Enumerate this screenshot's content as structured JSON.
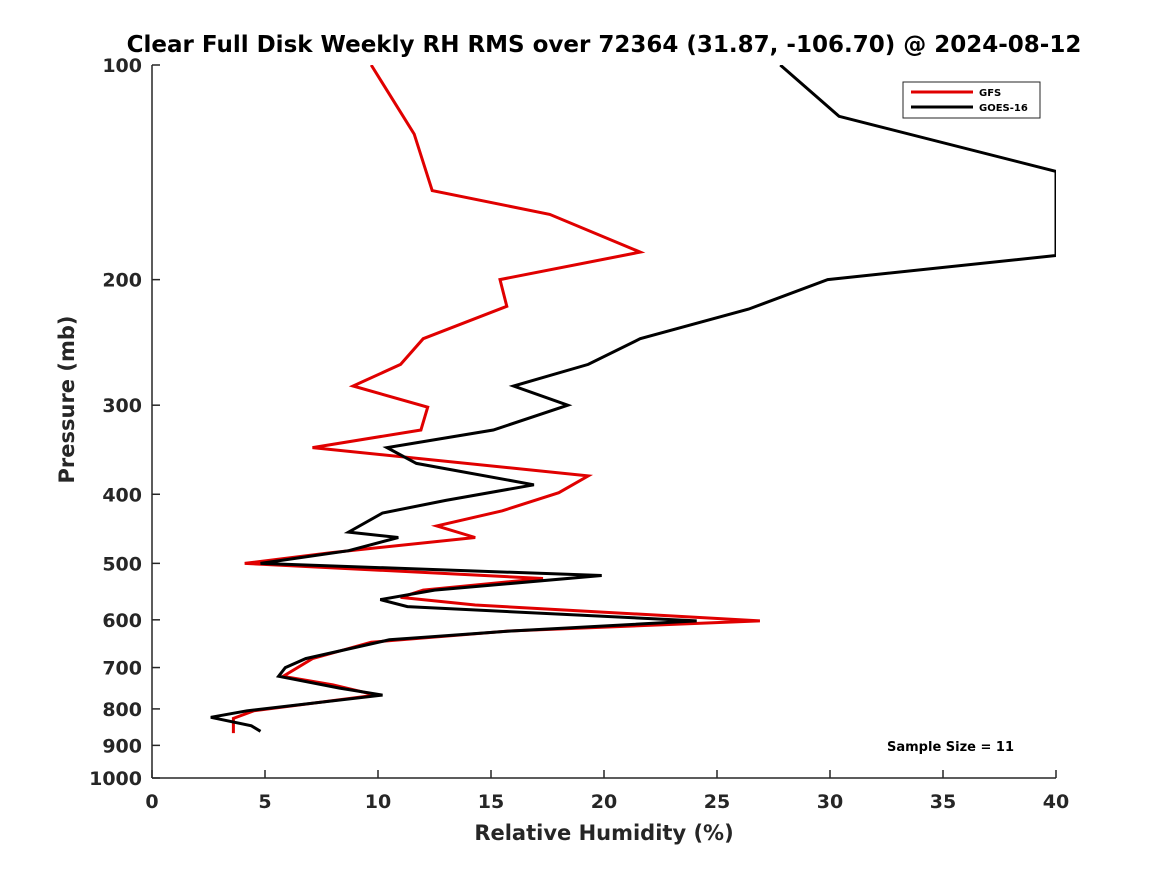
{
  "chart_data": {
    "type": "line",
    "title": "Clear Full Disk Weekly RH RMS over 72364 (31.87, -106.70) @ 2024-08-12",
    "xlabel": "Relative Humidity (%)",
    "ylabel": "Pressure (mb)",
    "xlim": [
      0,
      40
    ],
    "ylim": [
      100,
      1000
    ],
    "yscale": "log",
    "yreversed": true,
    "xticks": [
      0,
      5,
      10,
      15,
      20,
      25,
      30,
      35,
      40
    ],
    "xtick_labels": [
      "0",
      "5",
      "10",
      "15",
      "20",
      "25",
      "30",
      "35",
      "40"
    ],
    "yticks": [
      100,
      200,
      300,
      400,
      500,
      600,
      700,
      800,
      900,
      1000
    ],
    "ytick_labels": [
      "100",
      "200",
      "300",
      "400",
      "500",
      "600",
      "700",
      "800",
      "900",
      "1000"
    ],
    "grid": false,
    "legend": "top-right",
    "annotation": "Sample Size = 11",
    "series": [
      {
        "name": "GFS",
        "color": "#e00000",
        "points": [
          [
            9.7,
            100
          ],
          [
            11.6,
            125
          ],
          [
            12.4,
            150
          ],
          [
            17.6,
            162
          ],
          [
            21.6,
            183
          ],
          [
            15.4,
            200
          ],
          [
            15.7,
            218
          ],
          [
            12.0,
            242
          ],
          [
            11.0,
            263
          ],
          [
            8.9,
            282
          ],
          [
            12.2,
            302
          ],
          [
            11.9,
            325
          ],
          [
            7.1,
            344
          ],
          [
            19.3,
            377
          ],
          [
            18.0,
            398
          ],
          [
            15.5,
            422
          ],
          [
            12.6,
            443
          ],
          [
            14.3,
            460
          ],
          [
            7.9,
            483
          ],
          [
            4.1,
            500
          ],
          [
            17.3,
            525
          ],
          [
            12.0,
            545
          ],
          [
            11.0,
            558
          ],
          [
            14.3,
            572
          ],
          [
            26.9,
            602
          ],
          [
            15.8,
            622
          ],
          [
            9.7,
            645
          ],
          [
            7.1,
            680
          ],
          [
            5.8,
            720
          ],
          [
            8.0,
            740
          ],
          [
            9.9,
            765
          ],
          [
            4.5,
            805
          ],
          [
            3.6,
            825
          ],
          [
            3.6,
            865
          ]
        ]
      },
      {
        "name": "GOES-16",
        "color": "#000000",
        "points": [
          [
            27.8,
            100
          ],
          [
            30.4,
            118
          ],
          [
            40.0,
            141
          ],
          [
            40.0,
            185
          ],
          [
            29.9,
            200
          ],
          [
            26.4,
            220
          ],
          [
            21.6,
            242
          ],
          [
            19.3,
            263
          ],
          [
            16.0,
            282
          ],
          [
            18.4,
            300
          ],
          [
            15.1,
            325
          ],
          [
            10.4,
            344
          ],
          [
            11.7,
            362
          ],
          [
            16.9,
            388
          ],
          [
            13.0,
            408
          ],
          [
            10.2,
            425
          ],
          [
            8.7,
            452
          ],
          [
            10.9,
            460
          ],
          [
            8.7,
            480
          ],
          [
            4.8,
            500
          ],
          [
            19.9,
            520
          ],
          [
            12.5,
            545
          ],
          [
            10.1,
            562
          ],
          [
            11.3,
            575
          ],
          [
            24.1,
            602
          ],
          [
            15.9,
            622
          ],
          [
            10.5,
            640
          ],
          [
            6.8,
            680
          ],
          [
            5.9,
            700
          ],
          [
            5.6,
            720
          ],
          [
            8.3,
            748
          ],
          [
            10.2,
            765
          ],
          [
            4.2,
            805
          ],
          [
            2.6,
            822
          ],
          [
            4.4,
            845
          ],
          [
            4.8,
            860
          ]
        ]
      }
    ]
  }
}
